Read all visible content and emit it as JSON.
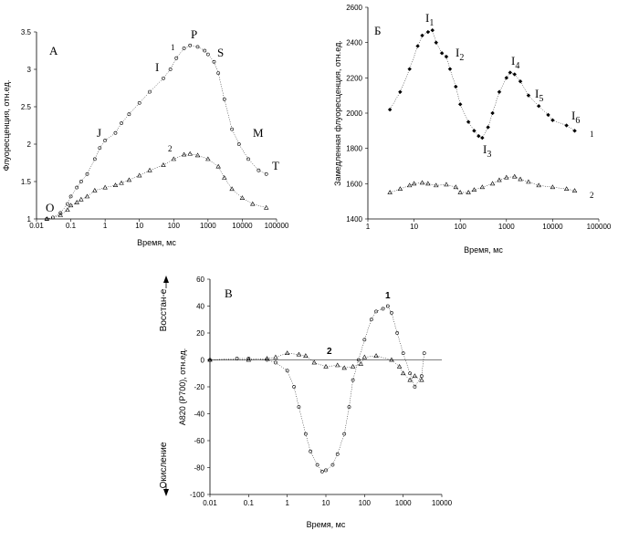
{
  "chart_data": [
    {
      "panel": "А",
      "type": "scatter",
      "xlabel": "Время, мс",
      "ylabel": "Флуоресценция, отн.ед.",
      "x_scale": "log",
      "xlim": [
        0.01,
        100000
      ],
      "ylim": [
        1,
        3.5
      ],
      "x_ticks": [
        "0.01",
        "0.1",
        "1",
        "10",
        "100",
        "1000",
        "10000",
        "100000"
      ],
      "y_ticks": [
        "1",
        "1.5",
        "2",
        "2.5",
        "3",
        "3.5"
      ],
      "grid": false,
      "series": [
        {
          "name": "1",
          "marker": "circle",
          "points": [
            [
              0.02,
              1.0
            ],
            [
              0.03,
              1.02
            ],
            [
              0.05,
              1.08
            ],
            [
              0.08,
              1.2
            ],
            [
              0.1,
              1.3
            ],
            [
              0.15,
              1.42
            ],
            [
              0.2,
              1.5
            ],
            [
              0.3,
              1.6
            ],
            [
              0.5,
              1.8
            ],
            [
              0.7,
              1.95
            ],
            [
              1,
              2.05
            ],
            [
              2,
              2.15
            ],
            [
              3,
              2.28
            ],
            [
              5,
              2.4
            ],
            [
              10,
              2.55
            ],
            [
              20,
              2.7
            ],
            [
              50,
              2.88
            ],
            [
              80,
              3.0
            ],
            [
              120,
              3.15
            ],
            [
              200,
              3.28
            ],
            [
              300,
              3.32
            ],
            [
              500,
              3.3
            ],
            [
              800,
              3.25
            ],
            [
              1000,
              3.2
            ],
            [
              1500,
              3.1
            ],
            [
              2000,
              2.95
            ],
            [
              3000,
              2.6
            ],
            [
              5000,
              2.2
            ],
            [
              8000,
              2.0
            ],
            [
              15000,
              1.8
            ],
            [
              30000,
              1.65
            ],
            [
              50000,
              1.6
            ]
          ]
        },
        {
          "name": "2",
          "marker": "triangle",
          "points": [
            [
              0.02,
              1.0
            ],
            [
              0.05,
              1.05
            ],
            [
              0.08,
              1.12
            ],
            [
              0.1,
              1.18
            ],
            [
              0.15,
              1.22
            ],
            [
              0.2,
              1.26
            ],
            [
              0.3,
              1.3
            ],
            [
              0.5,
              1.38
            ],
            [
              1,
              1.42
            ],
            [
              2,
              1.45
            ],
            [
              3,
              1.48
            ],
            [
              5,
              1.52
            ],
            [
              10,
              1.58
            ],
            [
              20,
              1.65
            ],
            [
              50,
              1.72
            ],
            [
              100,
              1.8
            ],
            [
              200,
              1.86
            ],
            [
              300,
              1.87
            ],
            [
              500,
              1.85
            ],
            [
              1000,
              1.8
            ],
            [
              2000,
              1.7
            ],
            [
              3000,
              1.55
            ],
            [
              5000,
              1.4
            ],
            [
              10000,
              1.28
            ],
            [
              20000,
              1.2
            ],
            [
              50000,
              1.15
            ]
          ]
        }
      ],
      "annotations": [
        "O",
        "J",
        "I",
        "P",
        "S",
        "M",
        "T",
        "1",
        "2"
      ]
    },
    {
      "panel": "Б",
      "type": "scatter",
      "xlabel": "Время, мс",
      "ylabel": "Замедленная флуоресценция, отн.ед.",
      "x_scale": "log",
      "xlim": [
        1,
        100000
      ],
      "ylim": [
        1400,
        2600
      ],
      "x_ticks": [
        "1",
        "10",
        "100",
        "1000",
        "10000",
        "100000"
      ],
      "y_ticks": [
        "1400",
        "1600",
        "1800",
        "2000",
        "2200",
        "2400",
        "2600"
      ],
      "grid": false,
      "series": [
        {
          "name": "1",
          "marker": "diamond",
          "points": [
            [
              3,
              2020
            ],
            [
              5,
              2120
            ],
            [
              8,
              2250
            ],
            [
              12,
              2380
            ],
            [
              15,
              2440
            ],
            [
              20,
              2460
            ],
            [
              25,
              2470
            ],
            [
              30,
              2400
            ],
            [
              40,
              2340
            ],
            [
              50,
              2320
            ],
            [
              60,
              2250
            ],
            [
              80,
              2150
            ],
            [
              100,
              2050
            ],
            [
              150,
              1950
            ],
            [
              200,
              1900
            ],
            [
              250,
              1870
            ],
            [
              300,
              1860
            ],
            [
              400,
              1920
            ],
            [
              500,
              2000
            ],
            [
              700,
              2120
            ],
            [
              1000,
              2200
            ],
            [
              1200,
              2230
            ],
            [
              1500,
              2220
            ],
            [
              2000,
              2180
            ],
            [
              3000,
              2100
            ],
            [
              5000,
              2040
            ],
            [
              8000,
              1990
            ],
            [
              10000,
              1960
            ],
            [
              20000,
              1930
            ],
            [
              30000,
              1900
            ]
          ]
        },
        {
          "name": "2",
          "marker": "triangle",
          "points": [
            [
              3,
              1550
            ],
            [
              5,
              1570
            ],
            [
              8,
              1590
            ],
            [
              10,
              1600
            ],
            [
              15,
              1605
            ],
            [
              20,
              1600
            ],
            [
              30,
              1590
            ],
            [
              50,
              1595
            ],
            [
              80,
              1580
            ],
            [
              100,
              1550
            ],
            [
              150,
              1550
            ],
            [
              200,
              1565
            ],
            [
              300,
              1580
            ],
            [
              500,
              1600
            ],
            [
              700,
              1620
            ],
            [
              1000,
              1635
            ],
            [
              1500,
              1640
            ],
            [
              2000,
              1625
            ],
            [
              3000,
              1610
            ],
            [
              5000,
              1590
            ],
            [
              10000,
              1580
            ],
            [
              20000,
              1570
            ],
            [
              30000,
              1560
            ]
          ]
        }
      ],
      "annotations": [
        "I1",
        "I2",
        "I3",
        "I4",
        "I5",
        "I6",
        "1",
        "2"
      ]
    },
    {
      "panel": "В",
      "type": "scatter",
      "xlabel": "Время, мс",
      "ylabel": "A820 (P700), отн.ед.",
      "y_side_labels": {
        "top": "Восстан-е",
        "bottom": "Окисление"
      },
      "x_scale": "log",
      "xlim": [
        0.01,
        10000
      ],
      "ylim": [
        -100,
        60
      ],
      "x_ticks": [
        "0.01",
        "0.1",
        "1",
        "10",
        "100",
        "1000",
        "10000"
      ],
      "y_ticks": [
        "-100",
        "-80",
        "-60",
        "-40",
        "-20",
        "0",
        "20",
        "40",
        "60"
      ],
      "grid": false,
      "series": [
        {
          "name": "1",
          "marker": "circle",
          "points": [
            [
              0.01,
              0
            ],
            [
              0.05,
              1
            ],
            [
              0.1,
              1
            ],
            [
              0.3,
              0
            ],
            [
              0.5,
              -2
            ],
            [
              1,
              -8
            ],
            [
              1.5,
              -20
            ],
            [
              2,
              -35
            ],
            [
              3,
              -55
            ],
            [
              4,
              -68
            ],
            [
              6,
              -78
            ],
            [
              8,
              -83
            ],
            [
              10,
              -82
            ],
            [
              15,
              -78
            ],
            [
              20,
              -70
            ],
            [
              30,
              -55
            ],
            [
              40,
              -35
            ],
            [
              50,
              -15
            ],
            [
              70,
              0
            ],
            [
              100,
              15
            ],
            [
              150,
              30
            ],
            [
              200,
              36
            ],
            [
              300,
              38
            ],
            [
              400,
              40
            ],
            [
              500,
              35
            ],
            [
              700,
              20
            ],
            [
              1000,
              5
            ],
            [
              1500,
              -10
            ],
            [
              2000,
              -20
            ],
            [
              3000,
              -12
            ],
            [
              3500,
              5
            ]
          ]
        },
        {
          "name": "2",
          "marker": "triangle",
          "points": [
            [
              0.01,
              0
            ],
            [
              0.1,
              0
            ],
            [
              0.3,
              1
            ],
            [
              0.5,
              2
            ],
            [
              1,
              5
            ],
            [
              2,
              4
            ],
            [
              3,
              3
            ],
            [
              5,
              -2
            ],
            [
              10,
              -5
            ],
            [
              20,
              -4
            ],
            [
              30,
              -6
            ],
            [
              50,
              -5
            ],
            [
              80,
              -3
            ],
            [
              100,
              2
            ],
            [
              200,
              3
            ],
            [
              500,
              0
            ],
            [
              800,
              -5
            ],
            [
              1000,
              -10
            ],
            [
              1500,
              -15
            ],
            [
              2000,
              -12
            ],
            [
              3000,
              -15
            ]
          ]
        }
      ],
      "annotations": [
        "1",
        "2"
      ]
    }
  ]
}
